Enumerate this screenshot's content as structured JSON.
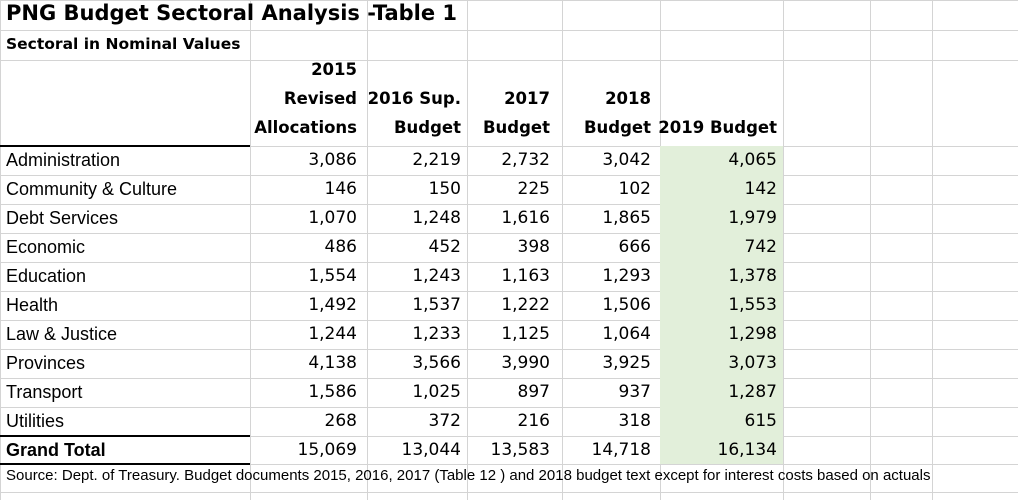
{
  "title": "PNG Budget Sectoral Analysis -Table 1",
  "subtitle": "Sectoral in Nominal Values",
  "columns": [
    [
      "2015",
      "Revised",
      "Allocations"
    ],
    [
      "2016 Sup.",
      "Budget"
    ],
    [
      "2017",
      "Budget"
    ],
    [
      "2018",
      "Budget"
    ],
    [
      "2019 Budget"
    ]
  ],
  "rows": [
    {
      "label": "Administration",
      "values": [
        "3,086",
        "2,219",
        "2,732",
        "3,042",
        "4,065"
      ]
    },
    {
      "label": "Community & Culture",
      "values": [
        "146",
        "150",
        "225",
        "102",
        "142"
      ]
    },
    {
      "label": "Debt Services",
      "values": [
        "1,070",
        "1,248",
        "1,616",
        "1,865",
        "1,979"
      ]
    },
    {
      "label": "Economic",
      "values": [
        "486",
        "452",
        "398",
        "666",
        "742"
      ]
    },
    {
      "label": "Education",
      "values": [
        "1,554",
        "1,243",
        "1,163",
        "1,293",
        "1,378"
      ]
    },
    {
      "label": "Health",
      "values": [
        "1,492",
        "1,537",
        "1,222",
        "1,506",
        "1,553"
      ]
    },
    {
      "label": "Law & Justice",
      "values": [
        "1,244",
        "1,233",
        "1,125",
        "1,064",
        "1,298"
      ]
    },
    {
      "label": "Provinces",
      "values": [
        "4,138",
        "3,566",
        "3,990",
        "3,925",
        "3,073"
      ]
    },
    {
      "label": "Transport",
      "values": [
        "1,586",
        "1,025",
        "897",
        "937",
        "1,287"
      ]
    },
    {
      "label": "Utilities",
      "values": [
        "268",
        "372",
        "216",
        "318",
        "615"
      ]
    }
  ],
  "total": {
    "label": "Grand Total",
    "values": [
      "15,069",
      "13,044",
      "13,583",
      "14,718",
      "16,134"
    ]
  },
  "source": "Source: Dept. of Treasury. Budget documents 2015, 2016, 2017 (Table 12 ) and 2018 budget text except for interest costs based on actuals",
  "colors": {
    "highlight_column": "#e2efda",
    "gridline": "#d4d4d4"
  }
}
